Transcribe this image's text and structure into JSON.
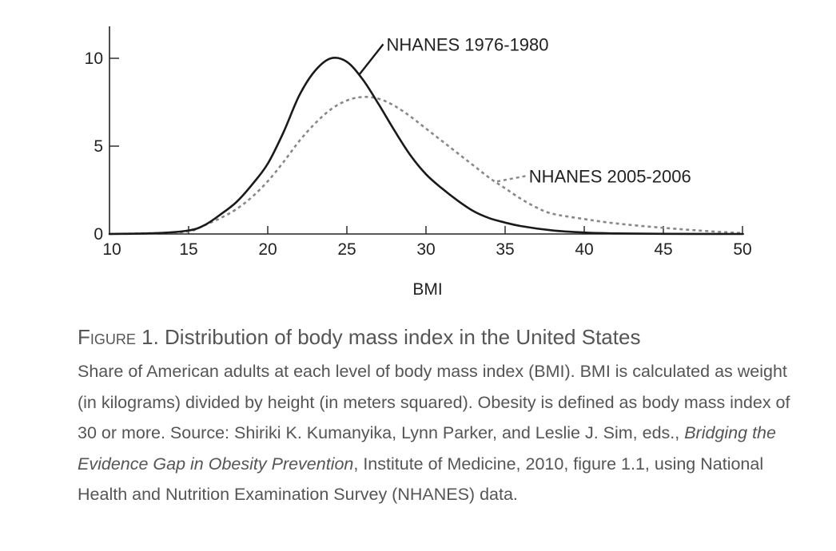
{
  "chart_data": {
    "type": "line",
    "xlabel": "BMI",
    "ylabel": "",
    "xlim": [
      10,
      50
    ],
    "ylim": [
      0,
      10
    ],
    "x_ticks": [
      "10",
      "15",
      "20",
      "25",
      "30",
      "35",
      "40",
      "45",
      "50"
    ],
    "y_ticks": [
      "0",
      "5",
      "10"
    ],
    "grid": false,
    "series": [
      {
        "name": "NHANES 1976-1980",
        "style": "solid",
        "color": "#1a1a1a",
        "x": [
          10,
          13,
          15,
          16,
          17,
          18,
          19,
          20,
          21,
          22,
          23,
          24,
          25,
          26,
          27,
          28,
          29,
          30,
          31,
          32,
          33,
          34,
          35,
          36,
          38,
          40,
          42,
          45,
          50
        ],
        "y": [
          0,
          0.05,
          0.2,
          0.5,
          1.1,
          1.8,
          2.8,
          4.0,
          5.8,
          7.9,
          9.3,
          10.0,
          9.8,
          8.8,
          7.4,
          5.9,
          4.5,
          3.4,
          2.6,
          1.9,
          1.3,
          0.9,
          0.65,
          0.45,
          0.2,
          0.08,
          0.03,
          0.01,
          0
        ]
      },
      {
        "name": "NHANES 2005-2006",
        "style": "dashed",
        "color": "#888888",
        "x": [
          10,
          13,
          15,
          16,
          17,
          18,
          19,
          20,
          21,
          22,
          23,
          24,
          25,
          26,
          27,
          28,
          29,
          30,
          31,
          32,
          33,
          34,
          35,
          36,
          37,
          38,
          40,
          42,
          45,
          48,
          50
        ],
        "y": [
          0,
          0.05,
          0.15,
          0.5,
          0.9,
          1.4,
          2.1,
          3.0,
          4.1,
          5.3,
          6.3,
          7.1,
          7.6,
          7.8,
          7.7,
          7.3,
          6.7,
          6.0,
          5.3,
          4.6,
          3.9,
          3.2,
          2.6,
          2.0,
          1.5,
          1.15,
          0.85,
          0.6,
          0.35,
          0.15,
          0.05
        ]
      }
    ],
    "annotations": [
      {
        "text": "NHANES 1976-1980",
        "series": 0,
        "at_x": 25.8,
        "label_x": 27.5,
        "label_y": 10.8
      },
      {
        "text": "NHANES 2005-2006",
        "series": 1,
        "at_x": 34.5,
        "label_x": 36.5,
        "label_y": 3.3
      }
    ]
  },
  "caption": {
    "figure_label": "Figure",
    "figure_number": " 1. ",
    "title": "Distribution of body mass index in the United States",
    "body_1": "Share of American adults at each level of body mass index (BMI). BMI is calculated as weight (in kilograms) divided by height (in meters squared). Obesity is defined as body mass index of 30 or more. Source: Shiriki K. Kumanyika, Lynn Parker, and Leslie J. Sim, eds., ",
    "book_title": "Bridging the Evidence Gap in Obesity Prevention",
    "body_2": ", Institute of Medicine, 2010, figure 1.1, using National Health and Nutrition Examination Survey (NHANES) data."
  }
}
